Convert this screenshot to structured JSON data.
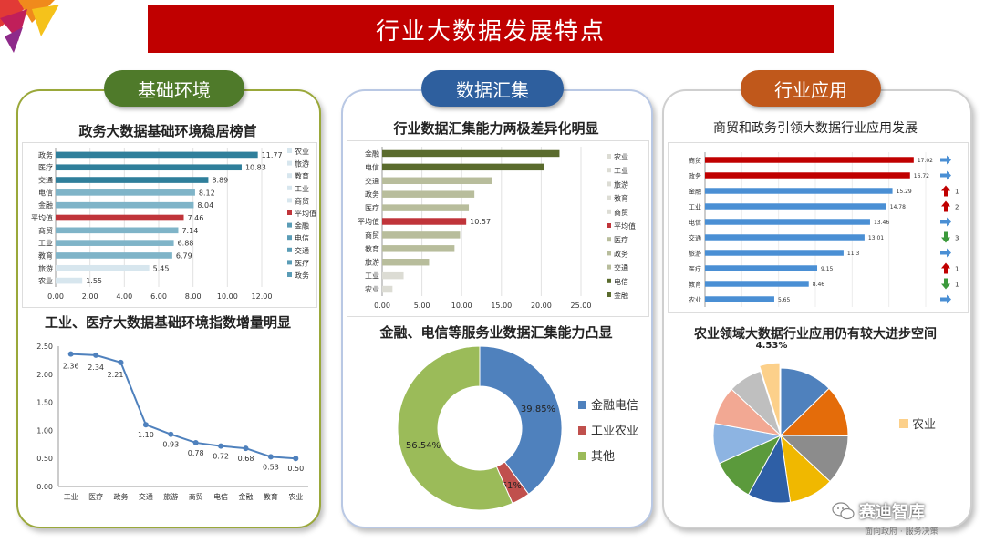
{
  "page_title": "行业大数据发展特点",
  "sections": {
    "left": "基础环境",
    "mid": "数据汇集",
    "right": "行业应用"
  },
  "watermark": {
    "name": "赛迪智库",
    "slogan": "面向政府 · 服务决策"
  },
  "colors": {
    "banner": "#c00000",
    "left_pill": "#4f7a2a",
    "mid_pill": "#2e5f9e",
    "right_pill": "#c0581b",
    "highlight": "#c0343a"
  },
  "chart_data": [
    {
      "id": "c1",
      "type": "bar",
      "orientation": "horizontal",
      "title": "政务大数据基础环境稳居榜首",
      "categories": [
        "政务",
        "医疗",
        "交通",
        "电信",
        "金融",
        "平均值",
        "商贸",
        "工业",
        "教育",
        "旅游",
        "农业"
      ],
      "values": [
        11.77,
        10.83,
        8.89,
        8.12,
        8.04,
        7.46,
        7.14,
        6.88,
        6.79,
        5.45,
        1.55
      ],
      "data_labels": [
        "11.77",
        "10.83",
        "8.89",
        "8.12",
        "8.04",
        "7.46",
        "7.14",
        "6.88",
        "6.79",
        "5.45",
        "1.55"
      ],
      "xlim": [
        0,
        12
      ],
      "x_ticks": [
        "0.00",
        "2.00",
        "4.00",
        "6.00",
        "8.00",
        "10.00",
        "12.00"
      ],
      "legend": [
        "农业",
        "旅游",
        "教育",
        "工业",
        "商贸",
        "平均值",
        "金融",
        "电信",
        "交通",
        "医疗",
        "政务"
      ],
      "legend_position": "right",
      "grid": true
    },
    {
      "id": "c2",
      "type": "line",
      "title": "工业、医疗大数据基础环境指数增量明显",
      "categories": [
        "工业",
        "医疗",
        "政务",
        "交通",
        "旅游",
        "商贸",
        "电信",
        "金融",
        "教育",
        "农业"
      ],
      "values": [
        2.36,
        2.34,
        2.21,
        1.1,
        0.93,
        0.78,
        0.72,
        0.68,
        0.53,
        0.5
      ],
      "data_labels": [
        "2.36",
        "2.34",
        "2.21",
        "1.10",
        "0.93",
        "0.78",
        "0.72",
        "0.68",
        "0.53",
        "0.50"
      ],
      "ylim": [
        0,
        2.5
      ],
      "y_ticks": [
        "0.00",
        "0.50",
        "1.00",
        "1.50",
        "2.00",
        "2.50"
      ]
    },
    {
      "id": "c3",
      "type": "bar",
      "orientation": "horizontal",
      "title": "行业数据汇集能力两极差异化明显",
      "categories": [
        "金融",
        "电信",
        "交通",
        "政务",
        "医疗",
        "平均值",
        "商贸",
        "教育",
        "旅游",
        "工业",
        "农业"
      ],
      "values": [
        22.3,
        20.3,
        13.8,
        11.6,
        10.9,
        10.57,
        9.8,
        9.1,
        5.9,
        2.7,
        1.3
      ],
      "data_labels": [
        "",
        "",
        "",
        "",
        "",
        "10.57",
        "",
        "",
        "",
        "",
        ""
      ],
      "xlim": [
        0,
        25
      ],
      "x_ticks": [
        "0.00",
        "5.00",
        "10.00",
        "15.00",
        "20.00",
        "25.00"
      ],
      "legend": [
        "农业",
        "工业",
        "旅游",
        "教育",
        "商贸",
        "平均值",
        "医疗",
        "政务",
        "交通",
        "电信",
        "金融"
      ],
      "legend_position": "right"
    },
    {
      "id": "c4",
      "type": "pie",
      "donut": true,
      "title": "金融、电信等服务业数据汇集能力凸显",
      "slices": [
        {
          "label": "金融电信",
          "value": 39.85,
          "text": "39.85%",
          "color": "#4f81bd"
        },
        {
          "label": "工业农业",
          "value": 3.61,
          "text": "3.61%",
          "color": "#c0504d"
        },
        {
          "label": "其他",
          "value": 56.54,
          "text": "56.54%",
          "color": "#9bbb59"
        }
      ],
      "legend_position": "right"
    },
    {
      "id": "c5",
      "type": "bar",
      "orientation": "horizontal",
      "title": "商贸和政务引领大数据行业应用发展",
      "categories": [
        "商贸",
        "政务",
        "金融",
        "工业",
        "电信",
        "交通",
        "旅游",
        "医疗",
        "教育",
        "农业"
      ],
      "values": [
        17.02,
        16.72,
        15.29,
        14.78,
        13.46,
        13.01,
        11.3,
        9.15,
        8.46,
        5.65
      ],
      "data_labels": [
        "17.02",
        "16.72",
        "15.29",
        "14.78",
        "13.46",
        "13.01",
        "11.3",
        "9.15",
        "8.46",
        "5.65"
      ],
      "xlim": [
        0,
        18
      ],
      "trend_icons": [
        "right-arrow-icon",
        "right-arrow-icon",
        "up-arrow-icon",
        "up-arrow-icon",
        "right-arrow-icon",
        "down-arrow-icon",
        "right-arrow-icon",
        "up-arrow-icon",
        "down-arrow-icon",
        "right-arrow-icon"
      ],
      "trend_text": [
        "",
        "",
        "1",
        "2",
        "",
        "3",
        "",
        "1",
        "1",
        ""
      ]
    },
    {
      "id": "c6",
      "type": "pie",
      "title": "农业领域大数据行业应用仍有较大进步空间",
      "slices": [
        {
          "value": 11.8,
          "color": "#4f81bd"
        },
        {
          "value": 11.5,
          "color": "#e46c0a"
        },
        {
          "value": 11.0,
          "color": "#8c8c8c"
        },
        {
          "value": 10.0,
          "color": "#f0b800"
        },
        {
          "value": 9.5,
          "color": "#2e5fa6"
        },
        {
          "value": 9.5,
          "color": "#5b9a3c"
        },
        {
          "value": 9.0,
          "color": "#8db4e2"
        },
        {
          "value": 8.5,
          "color": "#f2a893"
        },
        {
          "value": 7.5,
          "color": "#bfbfbf"
        },
        {
          "value": 4.53,
          "color": "#fcd08a"
        }
      ],
      "highlight_label": "4.53%",
      "legend": [
        {
          "label": "农业",
          "color": "#fcd08a"
        }
      ]
    }
  ]
}
